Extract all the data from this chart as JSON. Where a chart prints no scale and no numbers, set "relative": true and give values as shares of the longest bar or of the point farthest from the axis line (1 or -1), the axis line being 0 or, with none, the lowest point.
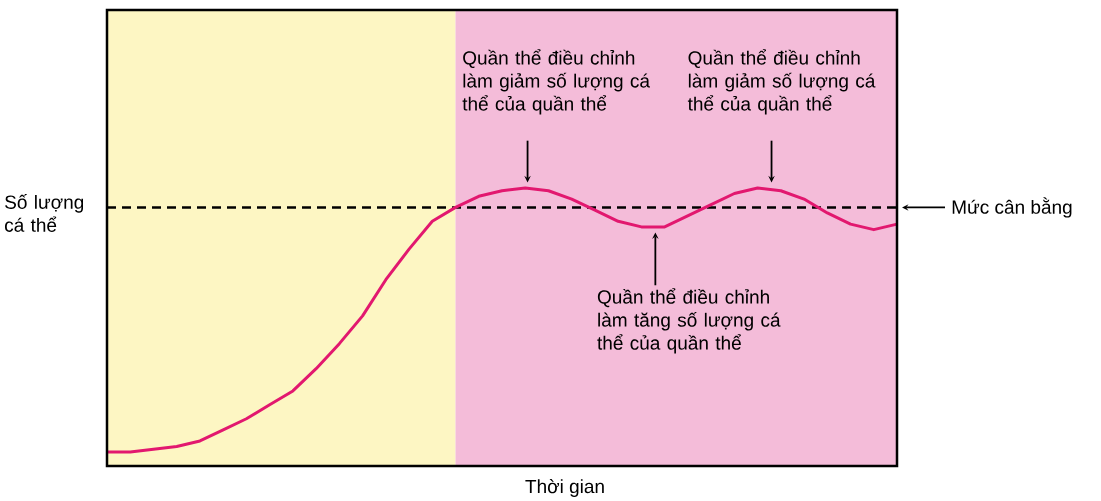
{
  "chart_data": {
    "type": "line",
    "relative": true,
    "xlabel": "Thời gian",
    "ylabel": "Số lượng cá thể",
    "categories": [
      null,
      null,
      null,
      null,
      null,
      null,
      null,
      null,
      null,
      null,
      null,
      null,
      null,
      null,
      null,
      null,
      null,
      null,
      null,
      null,
      null,
      null,
      null,
      null,
      null,
      null,
      null,
      null,
      null,
      null,
      null,
      null,
      null,
      null,
      null
    ],
    "series": [
      {
        "color": "#e2186f",
        "values": [
          0.05,
          0.05,
          0.06,
          0.07,
          0.09,
          0.13,
          0.17,
          0.22,
          0.27,
          0.35,
          0.44,
          0.54,
          0.67,
          0.78,
          0.88,
          0.93,
          0.97,
          0.99,
          1.0,
          0.99,
          0.96,
          0.92,
          0.88,
          0.86,
          0.86,
          0.9,
          0.94,
          0.98,
          1.0,
          0.99,
          0.96,
          0.91,
          0.87,
          0.85,
          0.87
        ]
      }
    ],
    "ref_lines": [
      {
        "axis": "y",
        "value": 0.93,
        "label": "Mức cân bằng",
        "color": "#000000",
        "line_style": "dashed"
      }
    ],
    "annotations": [
      "Quần thể điều chỉnh làm giảm số lượng cá thể của quần thể",
      "Quần thể điều chỉnh làm giảm số lượng cá thể của quần thể",
      "Quần thể điều chỉnh làm tăng số lượng cá thể của quần thể"
    ],
    "marker": "none",
    "line_style": "solid"
  }
}
